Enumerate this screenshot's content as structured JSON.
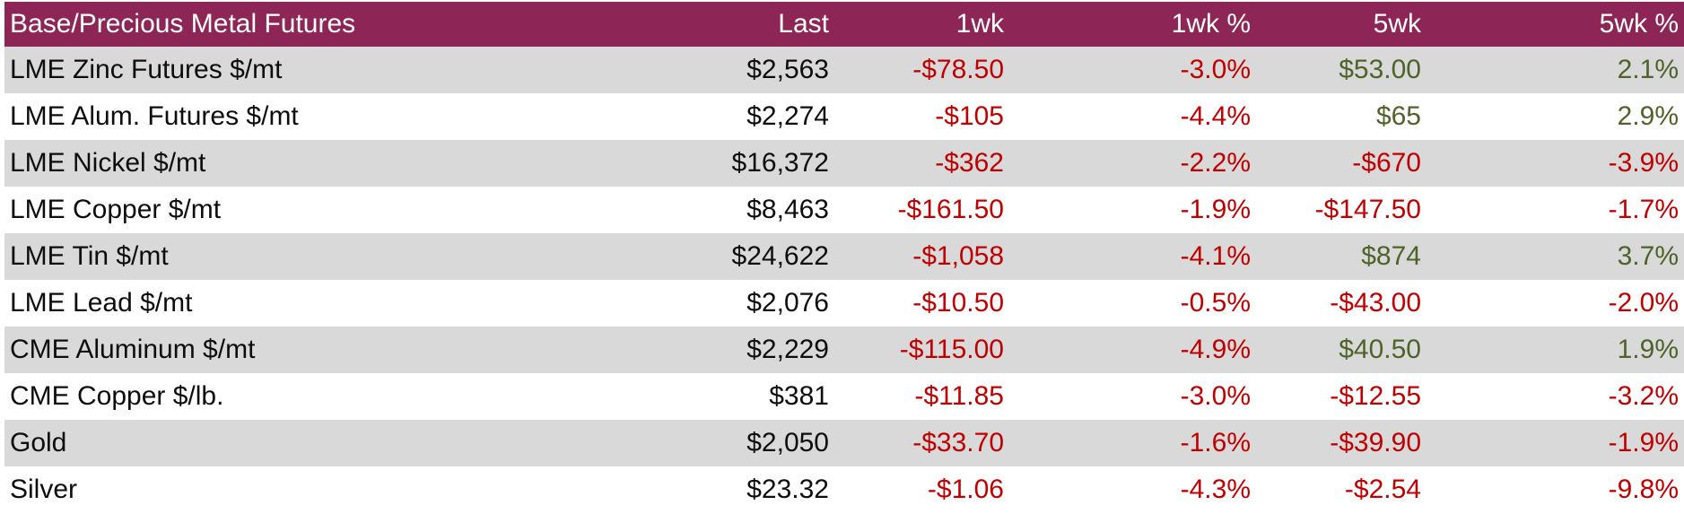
{
  "colors": {
    "header_bg": "#8D2656",
    "header_text": "#FFFFFF",
    "row_stripe": "#D9D9D9",
    "row_plain": "#FFFFFF",
    "text_neutral": "#0d0d0d",
    "negative_red": "#C00000",
    "positive_green": "#4F6228"
  },
  "chart_data": {
    "type": "table",
    "title": "Base/Precious Metal Futures",
    "columns": [
      "Last",
      "1wk",
      "1wk %",
      "5wk",
      "5wk %"
    ],
    "rows": [
      {
        "label": "LME Zinc Futures $/mt",
        "cells": [
          {
            "text": "$2,563",
            "tone": "plain"
          },
          {
            "text": "-$78.50",
            "tone": "neg"
          },
          {
            "text": "-3.0%",
            "tone": "neg"
          },
          {
            "text": "$53.00",
            "tone": "pos"
          },
          {
            "text": "2.1%",
            "tone": "pos"
          }
        ]
      },
      {
        "label": "LME Alum. Futures $/mt",
        "cells": [
          {
            "text": "$2,274",
            "tone": "plain"
          },
          {
            "text": "-$105",
            "tone": "neg"
          },
          {
            "text": "-4.4%",
            "tone": "neg"
          },
          {
            "text": "$65",
            "tone": "pos"
          },
          {
            "text": "2.9%",
            "tone": "pos"
          }
        ]
      },
      {
        "label": "LME Nickel $/mt",
        "cells": [
          {
            "text": "$16,372",
            "tone": "plain"
          },
          {
            "text": "-$362",
            "tone": "neg"
          },
          {
            "text": "-2.2%",
            "tone": "neg"
          },
          {
            "text": "-$670",
            "tone": "neg"
          },
          {
            "text": "-3.9%",
            "tone": "neg"
          }
        ]
      },
      {
        "label": "LME Copper $/mt",
        "cells": [
          {
            "text": "$8,463",
            "tone": "plain"
          },
          {
            "text": "-$161.50",
            "tone": "neg"
          },
          {
            "text": "-1.9%",
            "tone": "neg"
          },
          {
            "text": "-$147.50",
            "tone": "neg"
          },
          {
            "text": "-1.7%",
            "tone": "neg"
          }
        ]
      },
      {
        "label": "LME Tin $/mt",
        "cells": [
          {
            "text": "$24,622",
            "tone": "plain"
          },
          {
            "text": "-$1,058",
            "tone": "neg"
          },
          {
            "text": "-4.1%",
            "tone": "neg"
          },
          {
            "text": "$874",
            "tone": "pos"
          },
          {
            "text": "3.7%",
            "tone": "pos"
          }
        ]
      },
      {
        "label": "LME Lead $/mt",
        "cells": [
          {
            "text": "$2,076",
            "tone": "plain"
          },
          {
            "text": "-$10.50",
            "tone": "neg"
          },
          {
            "text": "-0.5%",
            "tone": "neg"
          },
          {
            "text": "-$43.00",
            "tone": "neg"
          },
          {
            "text": "-2.0%",
            "tone": "neg"
          }
        ]
      },
      {
        "label": "CME Aluminum $/mt",
        "cells": [
          {
            "text": "$2,229",
            "tone": "plain"
          },
          {
            "text": "-$115.00",
            "tone": "neg"
          },
          {
            "text": "-4.9%",
            "tone": "neg"
          },
          {
            "text": "$40.50",
            "tone": "pos"
          },
          {
            "text": "1.9%",
            "tone": "pos"
          }
        ]
      },
      {
        "label": "CME Copper $/lb.",
        "cells": [
          {
            "text": "$381",
            "tone": "plain"
          },
          {
            "text": "-$11.85",
            "tone": "neg"
          },
          {
            "text": "-3.0%",
            "tone": "neg"
          },
          {
            "text": "-$12.55",
            "tone": "neg"
          },
          {
            "text": "-3.2%",
            "tone": "neg"
          }
        ]
      },
      {
        "label": "Gold",
        "cells": [
          {
            "text": "$2,050",
            "tone": "plain"
          },
          {
            "text": "-$33.70",
            "tone": "neg"
          },
          {
            "text": "-1.6%",
            "tone": "neg"
          },
          {
            "text": "-$39.90",
            "tone": "neg"
          },
          {
            "text": "-1.9%",
            "tone": "neg"
          }
        ]
      },
      {
        "label": "Silver",
        "cells": [
          {
            "text": "$23.32",
            "tone": "plain"
          },
          {
            "text": "-$1.06",
            "tone": "neg"
          },
          {
            "text": "-4.3%",
            "tone": "neg"
          },
          {
            "text": "-$2.54",
            "tone": "neg"
          },
          {
            "text": "-9.8%",
            "tone": "neg"
          }
        ]
      }
    ]
  }
}
